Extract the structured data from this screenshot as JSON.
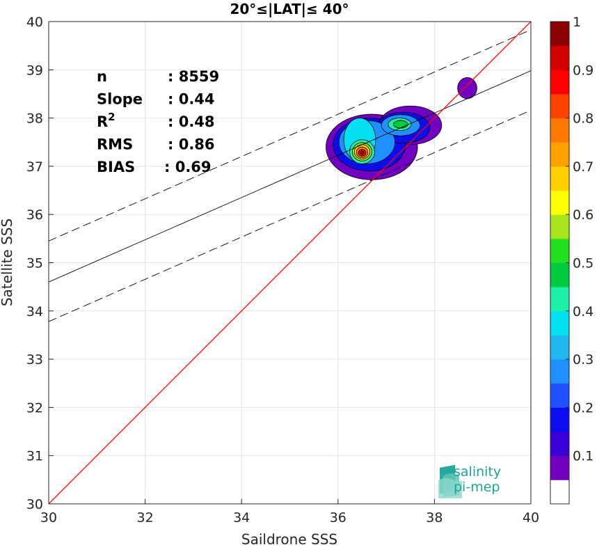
{
  "chart_data": {
    "type": "heatmap",
    "title": "20°≤|LAT|≤ 40°",
    "xlabel": "Saildrone SSS",
    "ylabel": "Satellite SSS",
    "xlim": [
      30,
      40
    ],
    "ylim": [
      30,
      40
    ],
    "xticks": [
      "30",
      "32",
      "34",
      "36",
      "38",
      "40"
    ],
    "yticks": [
      "30",
      "31",
      "32",
      "33",
      "34",
      "35",
      "36",
      "37",
      "38",
      "39",
      "40"
    ],
    "grid": true,
    "stats": [
      {
        "label": "n",
        "value": ": 8559"
      },
      {
        "label": "Slope",
        "value": ": 0.44"
      },
      {
        "label": "R",
        "sup": "2",
        "value": ": 0.48"
      },
      {
        "label": "RMS",
        "value": ": 0.86"
      },
      {
        "label": "BIAS",
        "value": ": 0.69"
      }
    ],
    "lines": {
      "identity": {
        "x": [
          30,
          40
        ],
        "y": [
          30,
          40
        ],
        "color": "#ff0000"
      },
      "regression": {
        "x": [
          30,
          40
        ],
        "y": [
          34.6,
          38.98
        ],
        "color": "#000000"
      },
      "upper_bound": {
        "x": [
          30,
          40
        ],
        "y": [
          35.45,
          39.83
        ],
        "color": "#000000"
      },
      "lower_bound": {
        "x": [
          30,
          40
        ],
        "y": [
          33.78,
          38.16
        ],
        "color": "#000000"
      }
    },
    "density_blobs": [
      {
        "cx": 36.7,
        "cy": 37.4,
        "rx": 0.95,
        "ry": 0.68,
        "level": 0.1
      },
      {
        "cx": 37.5,
        "cy": 37.85,
        "rx": 0.65,
        "ry": 0.4,
        "level": 0.1
      },
      {
        "cx": 38.68,
        "cy": 38.62,
        "rx": 0.2,
        "ry": 0.22,
        "level": 0.1
      },
      {
        "cx": 36.65,
        "cy": 37.45,
        "rx": 0.75,
        "ry": 0.55,
        "level": 0.2
      },
      {
        "cx": 37.35,
        "cy": 37.8,
        "rx": 0.55,
        "ry": 0.32,
        "level": 0.2
      },
      {
        "cx": 36.6,
        "cy": 37.5,
        "rx": 0.58,
        "ry": 0.45,
        "level": 0.3
      },
      {
        "cx": 37.3,
        "cy": 37.85,
        "rx": 0.4,
        "ry": 0.22,
        "level": 0.3
      },
      {
        "cx": 36.45,
        "cy": 37.55,
        "rx": 0.33,
        "ry": 0.45,
        "level": 0.4
      },
      {
        "cx": 37.28,
        "cy": 37.87,
        "rx": 0.24,
        "ry": 0.13,
        "level": 0.45
      },
      {
        "cx": 37.3,
        "cy": 37.87,
        "rx": 0.15,
        "ry": 0.08,
        "level": 0.5
      },
      {
        "cx": 36.5,
        "cy": 37.3,
        "rx": 0.26,
        "ry": 0.25,
        "level": 0.45
      },
      {
        "cx": 36.5,
        "cy": 37.3,
        "rx": 0.2,
        "ry": 0.19,
        "level": 0.6
      },
      {
        "cx": 36.5,
        "cy": 37.3,
        "rx": 0.16,
        "ry": 0.15,
        "level": 0.7
      },
      {
        "cx": 36.5,
        "cy": 37.29,
        "rx": 0.12,
        "ry": 0.11,
        "level": 0.8
      },
      {
        "cx": 36.5,
        "cy": 37.28,
        "rx": 0.08,
        "ry": 0.07,
        "level": 0.9
      },
      {
        "cx": 36.5,
        "cy": 37.28,
        "rx": 0.04,
        "ry": 0.035,
        "level": 1.0
      }
    ],
    "colorbar": {
      "ticks": [
        "0.1",
        "0.2",
        "0.3",
        "0.4",
        "0.5",
        "0.6",
        "0.7",
        "0.8",
        "0.9",
        "1"
      ],
      "colors": [
        "#ffffff",
        "#7100c0",
        "#3b00d8",
        "#0c0cf0",
        "#1e50ff",
        "#1e90ff",
        "#21b8ef",
        "#00e0f0",
        "#1ef0a8",
        "#00ca40",
        "#20e020",
        "#a8e51e",
        "#ffff00",
        "#ffd000",
        "#ffa000",
        "#ff7800",
        "#ff4400",
        "#ff0000",
        "#d40000",
        "#8b0000"
      ]
    },
    "logo": {
      "line1": "salinity",
      "line2": "pi-mep"
    }
  }
}
